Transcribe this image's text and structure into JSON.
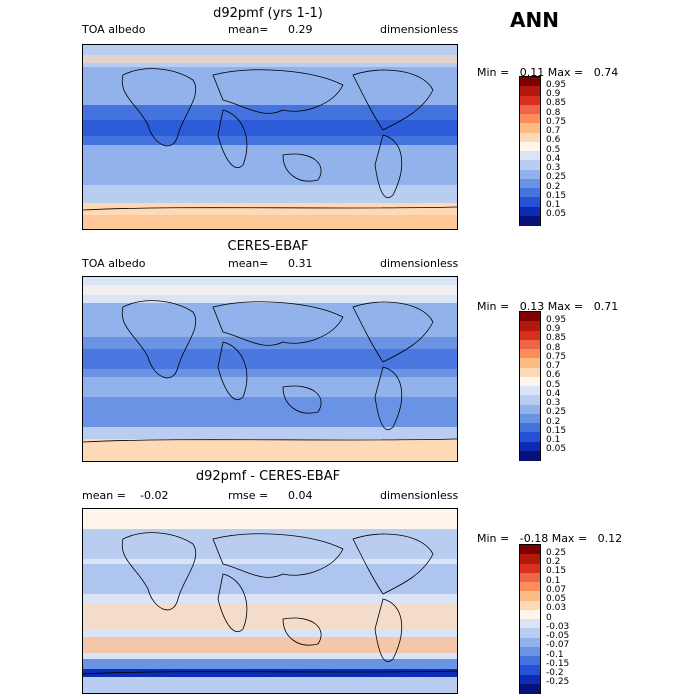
{
  "season": "ANN",
  "panels": [
    {
      "title": "d92pmf (yrs 1-1)",
      "left_label": "TOA albedo",
      "mean_label": "mean=",
      "mean_value": "0.29",
      "right_label": "dimensionless",
      "min_label": "Min =",
      "min_value": "0.11",
      "max_label": "Max =",
      "max_value": "0.74",
      "levels": [
        "0.95",
        "0.9",
        "0.85",
        "0.8",
        "0.75",
        "0.7",
        "0.6",
        "0.5",
        "0.4",
        "0.3",
        "0.25",
        "0.2",
        "0.15",
        "0.1",
        "0.05"
      ],
      "colors": [
        "#7f0000",
        "#b2180b",
        "#d7301f",
        "#ef6548",
        "#fc8d59",
        "#fdbb84",
        "#fdd9b5",
        "#fff5ea",
        "#d9e4f7",
        "#b8cdf0",
        "#91b2ea",
        "#6a93e4",
        "#4472df",
        "#2352d6",
        "#0c2cb4",
        "#08107a"
      ]
    },
    {
      "title": "CERES-EBAF",
      "left_label": "TOA albedo",
      "mean_label": "mean=",
      "mean_value": "0.31",
      "right_label": "dimensionless",
      "min_label": "Min =",
      "min_value": "0.13",
      "max_label": "Max =",
      "max_value": "0.71",
      "levels": [
        "0.95",
        "0.9",
        "0.85",
        "0.8",
        "0.75",
        "0.7",
        "0.6",
        "0.5",
        "0.4",
        "0.3",
        "0.25",
        "0.2",
        "0.15",
        "0.1",
        "0.05"
      ],
      "colors": [
        "#7f0000",
        "#b2180b",
        "#d7301f",
        "#ef6548",
        "#fc8d59",
        "#fdbb84",
        "#fdd9b5",
        "#fff5ea",
        "#d9e4f7",
        "#b8cdf0",
        "#91b2ea",
        "#6a93e4",
        "#4472df",
        "#2352d6",
        "#0c2cb4",
        "#08107a"
      ]
    },
    {
      "title": "d92pmf - CERES-EBAF",
      "left_label": "mean =",
      "mean_label": "-0.02",
      "mean_value": "rmse =",
      "rmse_value": "0.04",
      "right_label": "dimensionless",
      "min_label": "Min =",
      "min_value": "-0.18",
      "max_label": "Max =",
      "max_value": "0.12",
      "levels": [
        "0.25",
        "0.2",
        "0.15",
        "0.1",
        "0.07",
        "0.05",
        "0.03",
        "0",
        "-0.03",
        "-0.05",
        "-0.07",
        "-0.1",
        "-0.15",
        "-0.2",
        "-0.25"
      ],
      "colors": [
        "#7f0000",
        "#b2180b",
        "#d7301f",
        "#ef6548",
        "#fc8d59",
        "#fdbb84",
        "#fdd9b5",
        "#fff5ea",
        "#d9e4f7",
        "#b8cdf0",
        "#91b2ea",
        "#6a93e4",
        "#4472df",
        "#2352d6",
        "#0c2cb4",
        "#08107a"
      ]
    }
  ],
  "chart_data": [
    {
      "type": "heatmap",
      "title": "d92pmf (yrs 1-1)",
      "variable": "TOA albedo",
      "units": "dimensionless",
      "mean": 0.29,
      "min": 0.11,
      "max": 0.74,
      "contour_levels": [
        0.05,
        0.1,
        0.15,
        0.2,
        0.25,
        0.3,
        0.4,
        0.5,
        0.6,
        0.7,
        0.75,
        0.8,
        0.85,
        0.9,
        0.95
      ]
    },
    {
      "type": "heatmap",
      "title": "CERES-EBAF",
      "variable": "TOA albedo",
      "units": "dimensionless",
      "mean": 0.31,
      "min": 0.13,
      "max": 0.71,
      "contour_levels": [
        0.05,
        0.1,
        0.15,
        0.2,
        0.25,
        0.3,
        0.4,
        0.5,
        0.6,
        0.7,
        0.75,
        0.8,
        0.85,
        0.9,
        0.95
      ]
    },
    {
      "type": "heatmap",
      "title": "d92pmf - CERES-EBAF",
      "units": "dimensionless",
      "mean": -0.02,
      "rmse": 0.04,
      "min": -0.18,
      "max": 0.12,
      "contour_levels": [
        -0.25,
        -0.2,
        -0.15,
        -0.1,
        -0.07,
        -0.05,
        -0.03,
        0,
        0.03,
        0.05,
        0.07,
        0.1,
        0.15,
        0.2,
        0.25
      ]
    }
  ]
}
